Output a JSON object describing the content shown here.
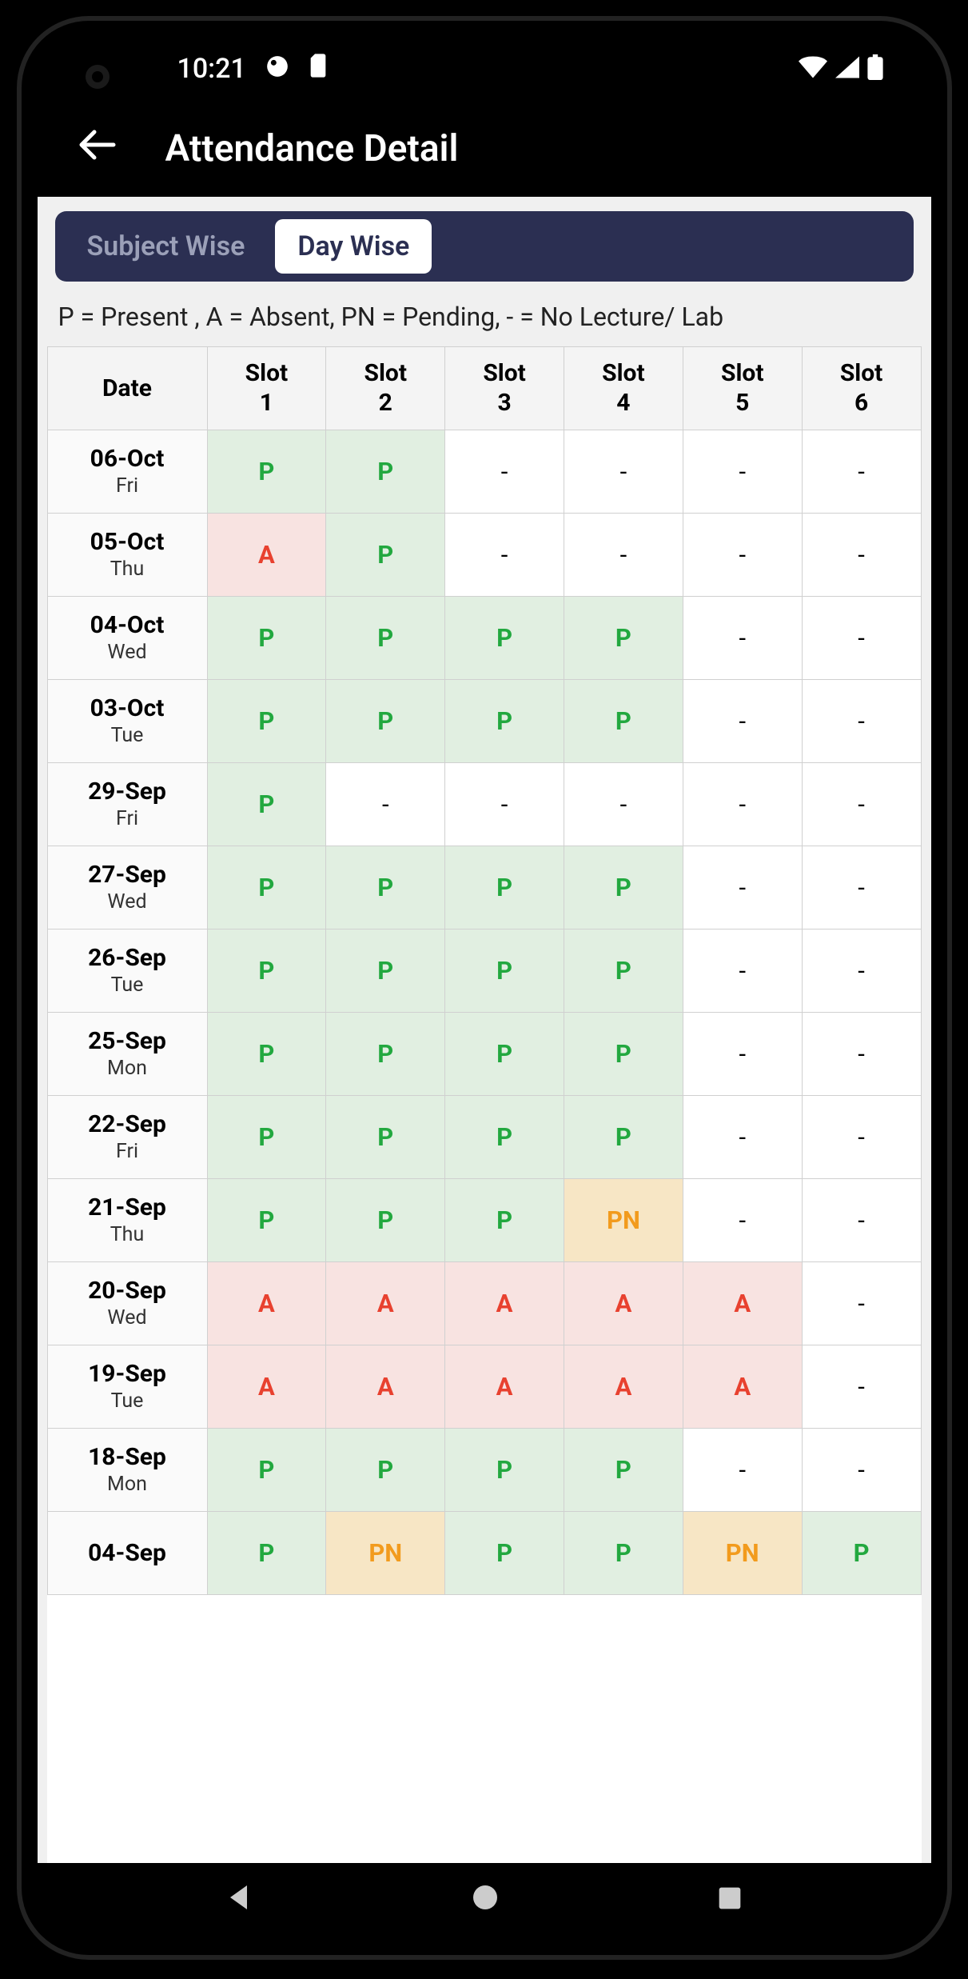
{
  "status": {
    "time": "10:21"
  },
  "header": {
    "title": "Attendance Detail"
  },
  "tabs": {
    "subject": "Subject Wise",
    "day": "Day Wise",
    "active": "day"
  },
  "legend": "P = Present , A = Absent, PN = Pending, - = No Lecture/ Lab",
  "table": {
    "date_header": "Date",
    "slot_headers": [
      "Slot 1",
      "Slot 2",
      "Slot 3",
      "Slot 4",
      "Slot 5",
      "Slot 6"
    ],
    "rows": [
      {
        "date": "06-Oct",
        "day": "Fri",
        "slots": [
          "P",
          "P",
          "-",
          "-",
          "-",
          "-"
        ]
      },
      {
        "date": "05-Oct",
        "day": "Thu",
        "slots": [
          "A",
          "P",
          "-",
          "-",
          "-",
          "-"
        ]
      },
      {
        "date": "04-Oct",
        "day": "Wed",
        "slots": [
          "P",
          "P",
          "P",
          "P",
          "-",
          "-"
        ]
      },
      {
        "date": "03-Oct",
        "day": "Tue",
        "slots": [
          "P",
          "P",
          "P",
          "P",
          "-",
          "-"
        ]
      },
      {
        "date": "29-Sep",
        "day": "Fri",
        "slots": [
          "P",
          "-",
          "-",
          "-",
          "-",
          "-"
        ]
      },
      {
        "date": "27-Sep",
        "day": "Wed",
        "slots": [
          "P",
          "P",
          "P",
          "P",
          "-",
          "-"
        ]
      },
      {
        "date": "26-Sep",
        "day": "Tue",
        "slots": [
          "P",
          "P",
          "P",
          "P",
          "-",
          "-"
        ]
      },
      {
        "date": "25-Sep",
        "day": "Mon",
        "slots": [
          "P",
          "P",
          "P",
          "P",
          "-",
          "-"
        ]
      },
      {
        "date": "22-Sep",
        "day": "Fri",
        "slots": [
          "P",
          "P",
          "P",
          "P",
          "-",
          "-"
        ]
      },
      {
        "date": "21-Sep",
        "day": "Thu",
        "slots": [
          "P",
          "P",
          "P",
          "PN",
          "-",
          "-"
        ]
      },
      {
        "date": "20-Sep",
        "day": "Wed",
        "slots": [
          "A",
          "A",
          "A",
          "A",
          "A",
          "-"
        ]
      },
      {
        "date": "19-Sep",
        "day": "Tue",
        "slots": [
          "A",
          "A",
          "A",
          "A",
          "A",
          "-"
        ]
      },
      {
        "date": "18-Sep",
        "day": "Mon",
        "slots": [
          "P",
          "P",
          "P",
          "P",
          "-",
          "-"
        ]
      },
      {
        "date": "04-Sep",
        "day": "",
        "slots": [
          "P",
          "PN",
          "P",
          "P",
          "PN",
          "P"
        ]
      }
    ]
  },
  "colors": {
    "present_bg": "#e1efe1",
    "present_fg": "#22a83f",
    "absent_bg": "#f8e3e1",
    "absent_fg": "#e8412f",
    "pending_bg": "#f7e6c5",
    "pending_fg": "#f29b1d",
    "segmented_bg": "#2b2f52"
  }
}
